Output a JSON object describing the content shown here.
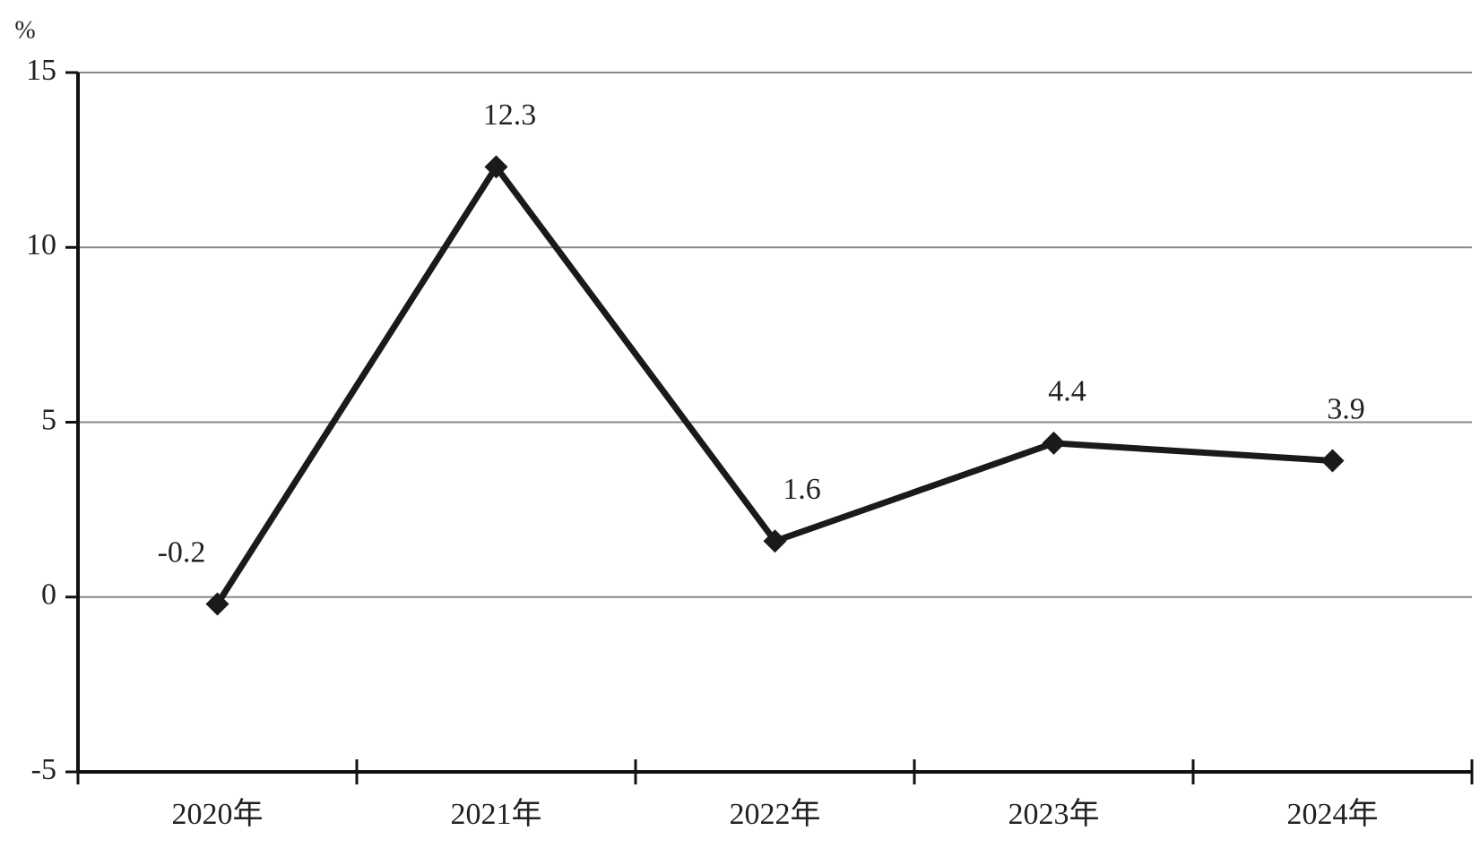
{
  "chart_data": {
    "type": "line",
    "y_label": "%",
    "categories": [
      "2020年",
      "2021年",
      "2022年",
      "2023年",
      "2024年"
    ],
    "series": [
      {
        "color": "#1a1a1a",
        "values": [
          -0.2,
          12.3,
          1.6,
          4.4,
          3.9
        ]
      }
    ],
    "ylim": [
      -5,
      15
    ],
    "yticks": [
      -5,
      0,
      5,
      10,
      15
    ],
    "grid": true
  }
}
